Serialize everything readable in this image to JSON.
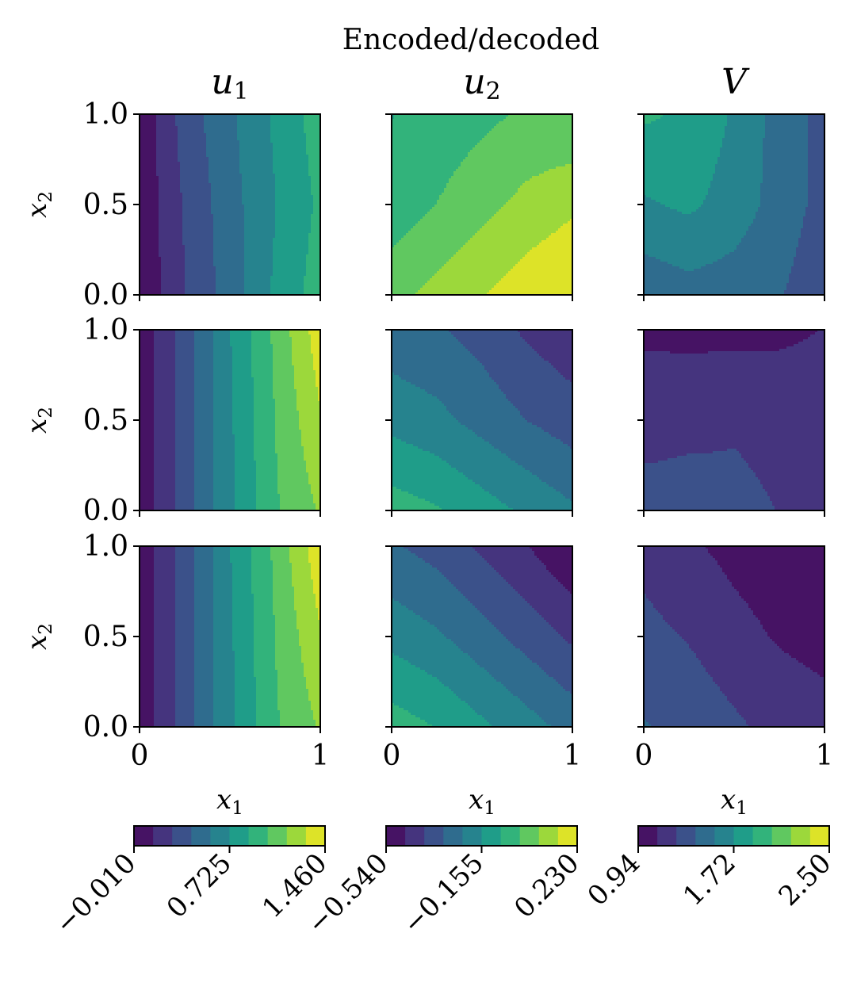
{
  "chart_data": {
    "type": "heatmap",
    "title": "Encoded/decoded",
    "style": "filled-contour",
    "colormap": "viridis",
    "colormap_stops": [
      "#440154",
      "#482878",
      "#3e4989",
      "#31688e",
      "#26828e",
      "#1f9e89",
      "#35b779",
      "#6ece58",
      "#b5de2b",
      "#fde725"
    ],
    "column_titles": [
      "u1",
      "u2",
      "V"
    ],
    "xlabel": "x1",
    "ylabel": "x2",
    "xlim": [
      0,
      1
    ],
    "ylim": [
      0,
      1
    ],
    "x_ticks": [
      "0",
      "1"
    ],
    "y_ticks": [
      "0.0",
      "0.5",
      "1.0"
    ],
    "contour_levels": 10,
    "colorbars": [
      {
        "variable": "u1",
        "range": [
          -0.01,
          1.46
        ],
        "tick_labels": [
          "−0.010",
          "0.725",
          "1.460"
        ]
      },
      {
        "variable": "u2",
        "range": [
          -0.54,
          0.23
        ],
        "tick_labels": [
          "−0.540",
          "−0.155",
          "0.230"
        ]
      },
      {
        "variable": "V",
        "range": [
          0.94,
          2.5
        ],
        "tick_labels": [
          "0.94",
          "1.72",
          "2.50"
        ]
      }
    ],
    "panels": [
      {
        "row": 0,
        "variable": "u1",
        "grid_values": [
          [
            0.02,
            0.35,
            0.55,
            0.75,
            0.95
          ],
          [
            0.02,
            0.3,
            0.52,
            0.72,
            0.9
          ],
          [
            0.01,
            0.28,
            0.5,
            0.75,
            0.95
          ]
        ]
      },
      {
        "row": 0,
        "variable": "u2",
        "grid_values": [
          [
            -0.08,
            -0.05,
            -0.02,
            0.01,
            0.0
          ],
          [
            -0.05,
            0.0,
            0.05,
            0.1,
            0.14
          ],
          [
            0.05,
            0.1,
            0.15,
            0.2,
            0.23
          ]
        ]
      },
      {
        "row": 0,
        "variable": "V",
        "grid_values": [
          [
            1.9,
            1.85,
            1.7,
            1.5,
            1.35
          ],
          [
            1.7,
            1.75,
            1.65,
            1.5,
            1.35
          ],
          [
            1.45,
            1.5,
            1.48,
            1.42,
            1.3
          ]
        ]
      },
      {
        "row": 1,
        "variable": "u1",
        "grid_values": [
          [
            0.05,
            0.35,
            0.72,
            1.05,
            1.4
          ],
          [
            0.05,
            0.35,
            0.7,
            1.02,
            1.3
          ],
          [
            0.05,
            0.35,
            0.7,
            1.0,
            1.18
          ]
        ]
      },
      {
        "row": 1,
        "variable": "u2",
        "grid_values": [
          [
            -0.28,
            -0.3,
            -0.34,
            -0.4,
            -0.44
          ],
          [
            -0.18,
            -0.21,
            -0.26,
            -0.31,
            -0.35
          ],
          [
            -0.04,
            -0.07,
            -0.12,
            -0.17,
            -0.22
          ]
        ]
      },
      {
        "row": 1,
        "variable": "V",
        "grid_values": [
          [
            1.08,
            1.06,
            1.05,
            1.06,
            1.1
          ],
          [
            1.15,
            1.2,
            1.24,
            1.22,
            1.2
          ],
          [
            1.36,
            1.34,
            1.28,
            1.25,
            1.22
          ]
        ]
      },
      {
        "row": 2,
        "variable": "u1",
        "grid_values": [
          [
            0.05,
            0.35,
            0.72,
            1.05,
            1.42
          ],
          [
            0.05,
            0.35,
            0.7,
            1.02,
            1.3
          ],
          [
            0.05,
            0.35,
            0.7,
            1.0,
            1.18
          ]
        ]
      },
      {
        "row": 2,
        "variable": "u2",
        "grid_values": [
          [
            -0.3,
            -0.34,
            -0.4,
            -0.46,
            -0.54
          ],
          [
            -0.18,
            -0.22,
            -0.28,
            -0.34,
            -0.4
          ],
          [
            -0.04,
            -0.08,
            -0.14,
            -0.2,
            -0.26
          ]
        ]
      },
      {
        "row": 2,
        "variable": "V",
        "grid_values": [
          [
            1.2,
            1.12,
            1.05,
            1.0,
            0.96
          ],
          [
            1.3,
            1.24,
            1.15,
            1.08,
            1.04
          ],
          [
            1.42,
            1.36,
            1.28,
            1.2,
            1.16
          ]
        ]
      }
    ]
  }
}
